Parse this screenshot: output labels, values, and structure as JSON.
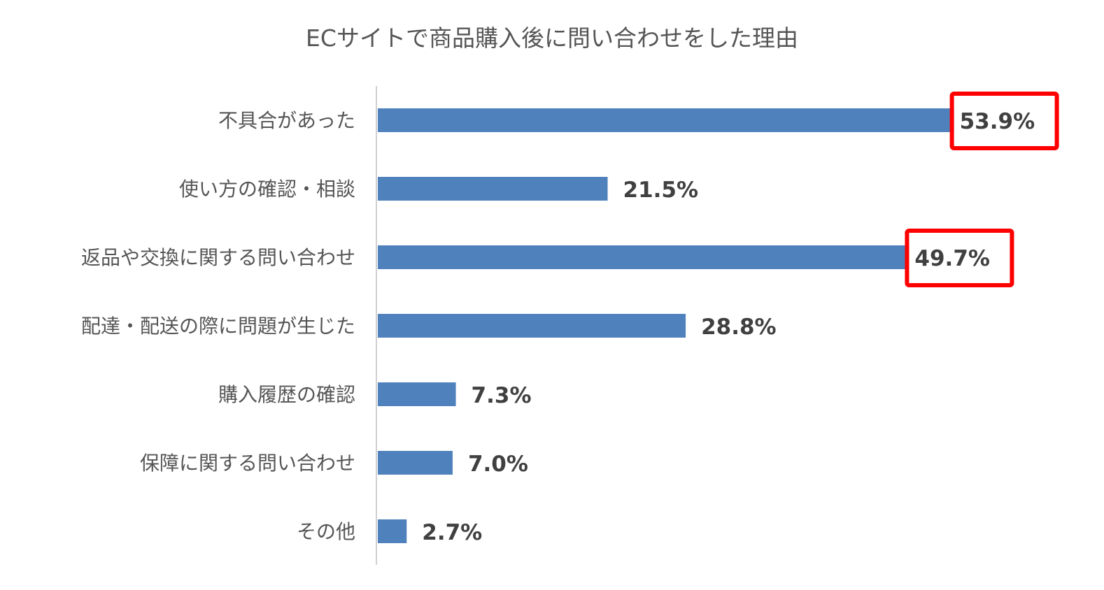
{
  "chart_data": {
    "type": "bar",
    "orientation": "horizontal",
    "title": "ECサイトで商品購入後に問い合わせをした理由",
    "xlabel": "",
    "ylabel": "",
    "categories": [
      "不具合があった",
      "使い方の確認・相談",
      "返品や交換に関する問い合わせ",
      "配達・配送の際に問題が生じた",
      "購入履歴の確認",
      "保障に関する問い合わせ",
      "その他"
    ],
    "values": [
      53.9,
      21.5,
      49.7,
      28.8,
      7.3,
      7.0,
      2.7
    ],
    "value_labels": [
      "53.9%",
      "21.5%",
      "49.7%",
      "28.8%",
      "7.3%",
      "7.0%",
      "2.7%"
    ],
    "highlighted": [
      true,
      false,
      true,
      false,
      false,
      false,
      false
    ],
    "xlim": [
      0,
      60
    ],
    "grid": false,
    "legend": "none",
    "colors": {
      "bar": "#4f81bd",
      "highlight_box": "#ff0000",
      "axis": "#d0d0d0"
    }
  }
}
